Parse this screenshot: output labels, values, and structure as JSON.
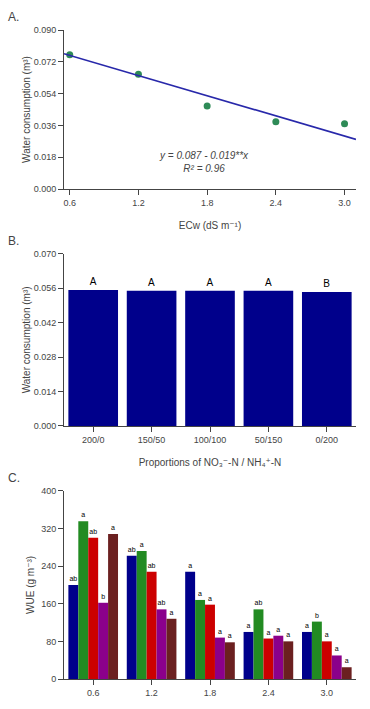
{
  "chart_data": [
    {
      "type": "scatter",
      "title": "A.",
      "xlabel": "ECw (dS m⁻¹)",
      "ylabel": "Water consumption (m³)",
      "series": [
        {
          "type": "scatter",
          "color": "#2E8B57",
          "x": [
            0.6,
            1.2,
            1.8,
            2.4,
            3.0
          ],
          "values": [
            0.076,
            0.065,
            0.047,
            0.038,
            0.037
          ]
        },
        {
          "type": "line",
          "color": "#2828AA",
          "x": [
            0.55,
            3.1
          ],
          "values": [
            0.07655,
            0.0281
          ]
        }
      ],
      "annotations": [
        "y = 0.087 - 0.019**x",
        "R² = 0.96"
      ],
      "xlim": [
        0.55,
        3.1
      ],
      "xticks": [
        0.6,
        1.2,
        1.8,
        2.4,
        {
          "value": 3.0,
          "label": "3.0"
        }
      ],
      "ylim": [
        0.0,
        0.09
      ],
      "yticks": [
        {
          "value": 0,
          "label": "0.000"
        },
        0.018,
        0.036,
        0.054,
        0.072,
        {
          "value": 0.09,
          "label": "0.090"
        }
      ],
      "grid": false,
      "legend": false
    },
    {
      "type": "bar",
      "title": "B.",
      "xlabel": "Proportions of NO₃⁻-N / NH₄⁺-N",
      "ylabel": "Water consumption (m³)",
      "categories": [
        "200/0",
        "150/50",
        "100/100",
        "50/150",
        "0/200"
      ],
      "values": [
        0.0553,
        0.055,
        0.055,
        0.055,
        0.0545
      ],
      "labels": [
        "A",
        "A",
        "A",
        "A",
        "B"
      ],
      "color": "#00008B",
      "ylim": [
        0.0,
        0.07
      ],
      "yticks": [
        {
          "value": 0,
          "label": "0.000"
        },
        0.014,
        0.028,
        0.042,
        0.056,
        {
          "value": 0.07,
          "label": "0.070"
        }
      ],
      "grid": false,
      "legend": false
    },
    {
      "type": "bar",
      "title": "C.",
      "ylabel": "WUE (g m⁻³)",
      "categories": [
        "0.6",
        "1.2",
        "1.8",
        "2.4",
        "3.0"
      ],
      "series": [
        {
          "color": "#00008B",
          "values": [
            200,
            262,
            228,
            100,
            100
          ],
          "labels": [
            "ab",
            "ab",
            "a",
            "a",
            "a"
          ]
        },
        {
          "color": "#228B22",
          "values": [
            335,
            272,
            168,
            148,
            122
          ],
          "labels": [
            "a",
            "a",
            "a",
            "ab",
            "b"
          ]
        },
        {
          "color": "#CC0000",
          "values": [
            300,
            228,
            158,
            86,
            80
          ],
          "labels": [
            "ab",
            "ab",
            "a",
            "a",
            "a"
          ]
        },
        {
          "color": "#8B008B",
          "values": [
            162,
            148,
            88,
            92,
            50
          ],
          "labels": [
            "b",
            "ab",
            "a",
            "a",
            "a"
          ]
        },
        {
          "color": "#6B2020",
          "values": [
            308,
            128,
            78,
            80,
            25
          ],
          "labels": [
            "a",
            "a",
            "a",
            "a",
            "a"
          ]
        }
      ],
      "ylim": [
        0,
        400
      ],
      "yticks": [
        0,
        80,
        160,
        240,
        320,
        400
      ],
      "grid": false,
      "legend": false
    }
  ]
}
